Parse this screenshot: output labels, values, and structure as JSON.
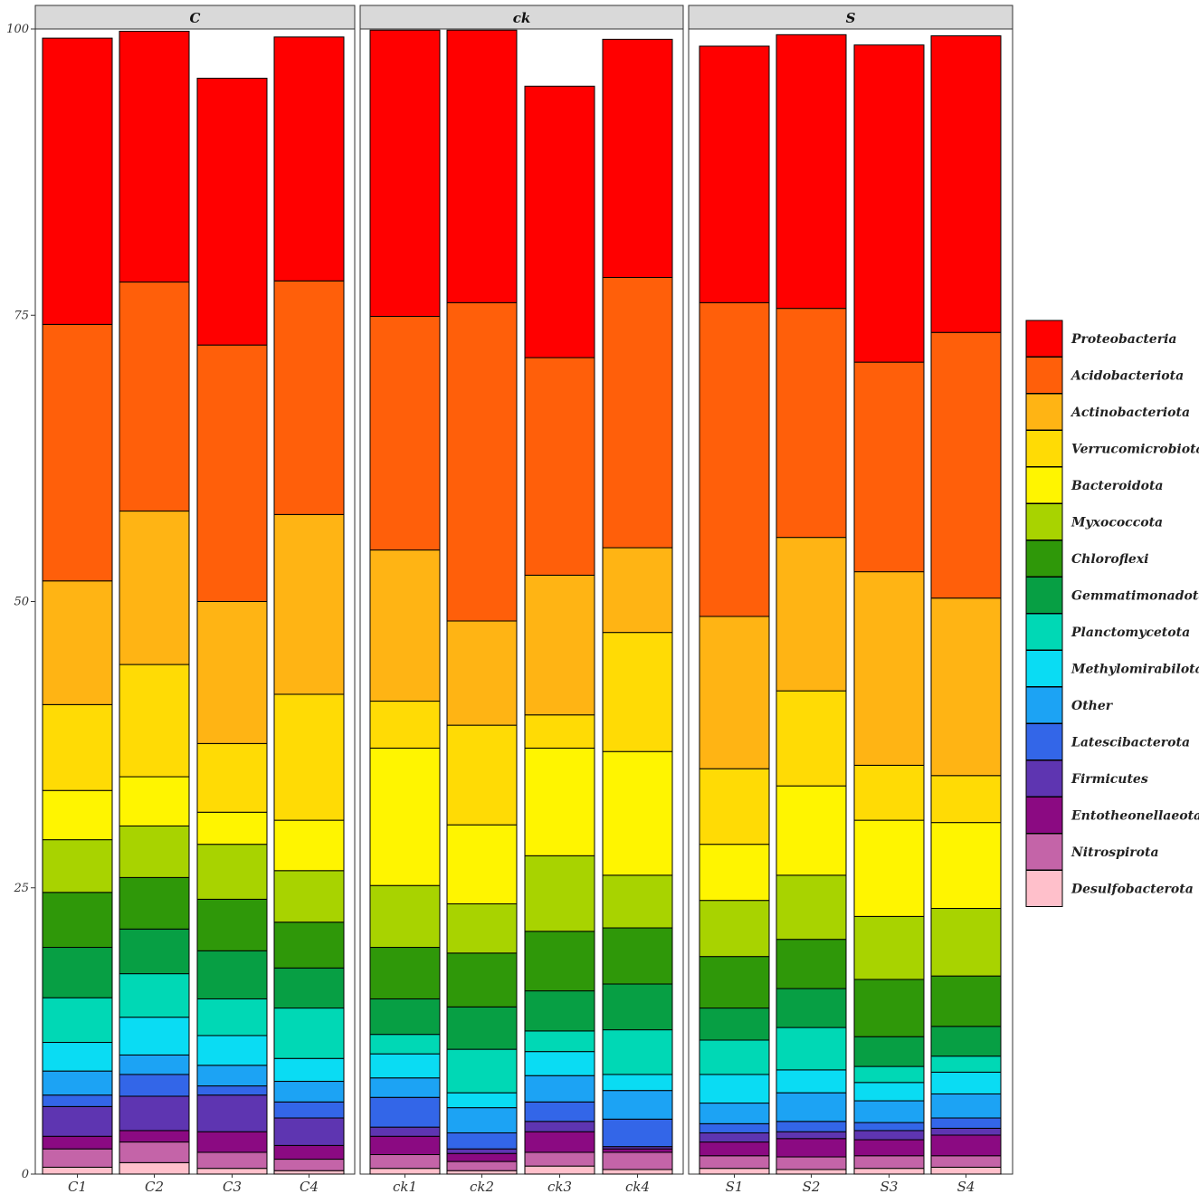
{
  "chart_data": {
    "type": "bar",
    "stacked": true,
    "title": "",
    "xlabel": "",
    "ylabel": "",
    "ylim": [
      0,
      100
    ],
    "yticks": [
      0,
      25,
      50,
      75,
      100
    ],
    "legend_position": "right",
    "facets": [
      {
        "name": "C",
        "samples": [
          "C1",
          "C2",
          "C3",
          "C4"
        ]
      },
      {
        "name": "ck",
        "samples": [
          "ck1",
          "ck2",
          "ck3",
          "ck4"
        ]
      },
      {
        "name": "S",
        "samples": [
          "S1",
          "S2",
          "S3",
          "S4"
        ]
      }
    ],
    "categories": [
      "C1",
      "C2",
      "C3",
      "C4",
      "ck1",
      "ck2",
      "ck3",
      "ck4",
      "S1",
      "S2",
      "S3",
      "S4"
    ],
    "series": [
      {
        "name": "Desulfobacterota",
        "color": "#FFC0CB",
        "values": [
          0.6,
          1.0,
          0.5,
          0.3,
          0.5,
          0.3,
          0.7,
          0.4,
          0.5,
          0.4,
          0.5,
          0.6
        ]
      },
      {
        "name": "Nitrospirota",
        "color": "#C464A8",
        "values": [
          1.6,
          1.8,
          1.4,
          1.0,
          1.2,
          0.8,
          1.2,
          1.5,
          1.1,
          1.1,
          1.1,
          1.0
        ]
      },
      {
        "name": "Entotheonellaeota",
        "color": "#8B0A82",
        "values": [
          1.1,
          1.0,
          1.8,
          1.2,
          1.6,
          0.7,
          1.8,
          0.3,
          1.2,
          1.6,
          1.4,
          1.8
        ]
      },
      {
        "name": "Firmicutes",
        "color": "#5E35B1",
        "values": [
          2.6,
          3.0,
          3.2,
          2.4,
          0.8,
          0.4,
          0.9,
          0.2,
          0.8,
          0.6,
          0.8,
          0.6
        ]
      },
      {
        "name": "Latescibacterota",
        "color": "#3366E8",
        "values": [
          1.0,
          1.9,
          0.8,
          1.4,
          2.6,
          1.4,
          1.7,
          2.4,
          0.8,
          0.9,
          0.7,
          0.9
        ]
      },
      {
        "name": "Other",
        "color": "#1CA3F4",
        "values": [
          2.1,
          1.7,
          1.8,
          1.8,
          1.7,
          2.2,
          2.3,
          2.5,
          1.8,
          2.5,
          1.9,
          2.1
        ]
      },
      {
        "name": "Methylomirabilota",
        "color": "#0ADCF3",
        "values": [
          2.5,
          3.3,
          2.6,
          2.0,
          2.1,
          1.3,
          2.1,
          1.4,
          2.5,
          2.0,
          1.6,
          1.9
        ]
      },
      {
        "name": "Planctomycetota",
        "color": "#00D8B5",
        "values": [
          3.9,
          3.8,
          3.2,
          4.4,
          1.7,
          3.8,
          1.8,
          3.9,
          3.0,
          3.7,
          1.4,
          1.4
        ]
      },
      {
        "name": "Gemmatimonadota",
        "color": "#079F44",
        "values": [
          4.4,
          3.9,
          4.2,
          3.5,
          3.1,
          3.7,
          3.5,
          4.0,
          2.8,
          3.4,
          2.6,
          2.6
        ]
      },
      {
        "name": "Chloroflexi",
        "color": "#2F9809",
        "values": [
          4.8,
          4.5,
          4.5,
          4.0,
          4.5,
          4.7,
          5.2,
          4.9,
          4.5,
          4.3,
          5.0,
          4.4
        ]
      },
      {
        "name": "Myxococcota",
        "color": "#A8D300",
        "values": [
          4.6,
          4.5,
          4.8,
          4.5,
          5.4,
          4.3,
          6.6,
          4.6,
          4.9,
          5.6,
          5.5,
          5.9
        ]
      },
      {
        "name": "Bacteroidota",
        "color": "#FFF500",
        "values": [
          4.3,
          4.3,
          2.8,
          4.4,
          12.0,
          6.9,
          9.4,
          10.8,
          4.9,
          7.8,
          8.4,
          7.5
        ]
      },
      {
        "name": "Verrucomicrobiota",
        "color": "#FFDB05",
        "values": [
          7.5,
          9.8,
          6.0,
          11.0,
          4.1,
          8.7,
          2.9,
          10.4,
          6.6,
          8.3,
          4.8,
          4.1
        ]
      },
      {
        "name": "Actinobacteriota",
        "color": "#FFB414",
        "values": [
          10.8,
          13.4,
          12.4,
          15.7,
          13.2,
          9.1,
          12.2,
          7.4,
          13.3,
          13.4,
          16.9,
          15.5
        ]
      },
      {
        "name": "Acidobacteriota",
        "color": "#FF5F0A",
        "values": [
          22.4,
          20.0,
          22.4,
          20.4,
          20.4,
          27.8,
          19.0,
          23.6,
          27.4,
          20.0,
          18.3,
          23.2
        ]
      },
      {
        "name": "Proteobacteria",
        "color": "#FF0000",
        "values": [
          25.0,
          21.9,
          23.3,
          21.3,
          25.0,
          23.8,
          23.7,
          20.8,
          22.4,
          23.9,
          27.7,
          25.9
        ]
      }
    ],
    "legend_order": [
      "Proteobacteria",
      "Acidobacteriota",
      "Actinobacteriota",
      "Verrucomicrobiota",
      "Bacteroidota",
      "Myxococcota",
      "Chloroflexi",
      "Gemmatimonadota",
      "Planctomycetota",
      "Methylomirabilota",
      "Other",
      "Latescibacterota",
      "Firmicutes",
      "Entotheonellaeota",
      "Nitrospirota",
      "Desulfobacterota"
    ]
  }
}
